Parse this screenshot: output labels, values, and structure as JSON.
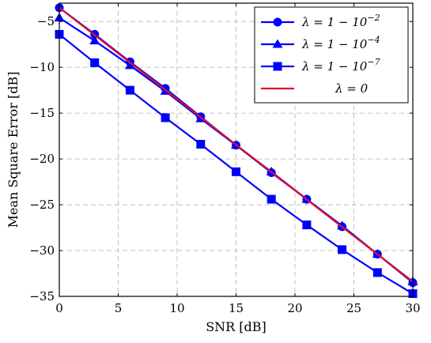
{
  "chart_data": {
    "type": "line",
    "title": "",
    "xlabel": "SNR [dB]",
    "ylabel": "Mean Square Error [dB]",
    "xlim": [
      0,
      30
    ],
    "ylim": [
      -35,
      -3
    ],
    "xticks": [
      0,
      5,
      10,
      15,
      20,
      25,
      30
    ],
    "yticks": [
      -35,
      -30,
      -25,
      -20,
      -15,
      -10,
      -5
    ],
    "grid": true,
    "legend_position": "top-right",
    "series": [
      {
        "name": "λ = 1 − 10^−2",
        "marker": "circle",
        "color": "#0000ff",
        "x": [
          0,
          3,
          6,
          9,
          12,
          15,
          18,
          21,
          24,
          27,
          30
        ],
        "y": [
          -3.5,
          -6.4,
          -9.4,
          -12.3,
          -15.4,
          -18.5,
          -21.5,
          -24.4,
          -27.4,
          -30.4,
          -33.5
        ]
      },
      {
        "name": "λ = 1 − 10^−4",
        "marker": "triangle",
        "color": "#0000ff",
        "x": [
          0,
          3,
          6,
          9,
          12,
          15,
          18,
          21,
          24,
          27,
          30
        ],
        "y": [
          -4.6,
          -7.1,
          -9.8,
          -12.6,
          -15.6,
          -18.5,
          -21.4,
          -24.4,
          -27.3,
          -30.4,
          -33.4
        ]
      },
      {
        "name": "λ = 1 − 10^−7",
        "marker": "square",
        "color": "#0000ff",
        "x": [
          0,
          3,
          6,
          9,
          12,
          15,
          18,
          21,
          24,
          27,
          30
        ],
        "y": [
          -6.4,
          -9.5,
          -12.5,
          -15.5,
          -18.4,
          -21.4,
          -24.4,
          -27.2,
          -29.9,
          -32.4,
          -34.7
        ]
      },
      {
        "name": "λ = 0",
        "marker": "none",
        "color": "#e0102a",
        "x": [
          0,
          30
        ],
        "y": [
          -3.5,
          -33.4
        ]
      }
    ]
  }
}
